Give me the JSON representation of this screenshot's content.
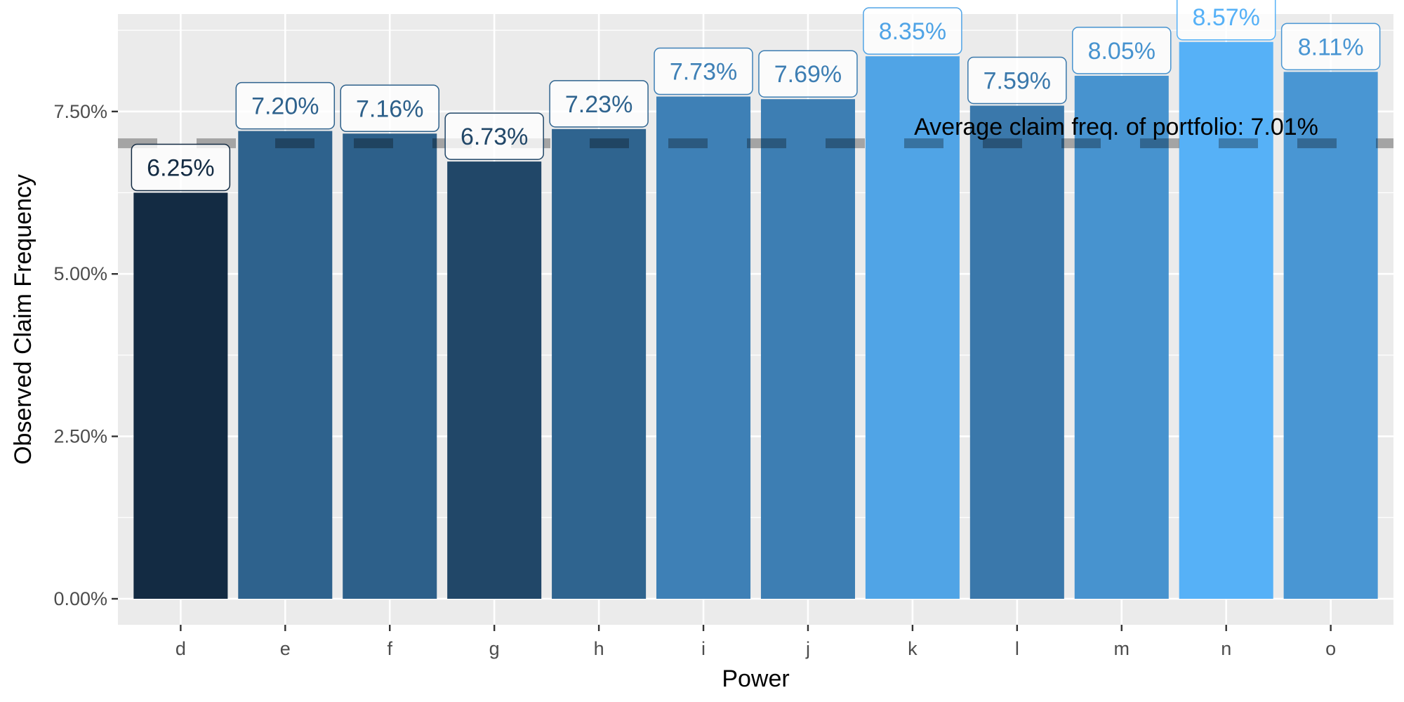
{
  "chart_data": {
    "type": "bar",
    "title": "",
    "xlabel": "Power",
    "ylabel": "Observed Claim Frequency",
    "categories": [
      "d",
      "e",
      "f",
      "g",
      "h",
      "i",
      "j",
      "k",
      "l",
      "m",
      "n",
      "o"
    ],
    "values": [
      6.25,
      7.2,
      7.16,
      6.73,
      7.23,
      7.73,
      7.69,
      8.35,
      7.59,
      8.05,
      8.57,
      8.11
    ],
    "value_labels": [
      "6.25%",
      "7.20%",
      "7.16%",
      "6.73%",
      "7.23%",
      "7.73%",
      "7.69%",
      "8.35%",
      "7.59%",
      "8.05%",
      "8.57%",
      "8.11%"
    ],
    "ylim": [
      -0.4,
      9.0
    ],
    "y_ticks": [
      0,
      2.5,
      5,
      7.5
    ],
    "y_tick_labels": [
      "0.00%",
      "2.50%",
      "5.00%",
      "7.50%"
    ],
    "reference_line": {
      "value": 7.01,
      "label": "Average claim freq. of portfolio:  7.01%",
      "style": "dashed",
      "color": "#000000"
    },
    "grid": true,
    "legend": "none",
    "color_scale": {
      "low": "#132B43",
      "high": "#56B1F7"
    }
  }
}
